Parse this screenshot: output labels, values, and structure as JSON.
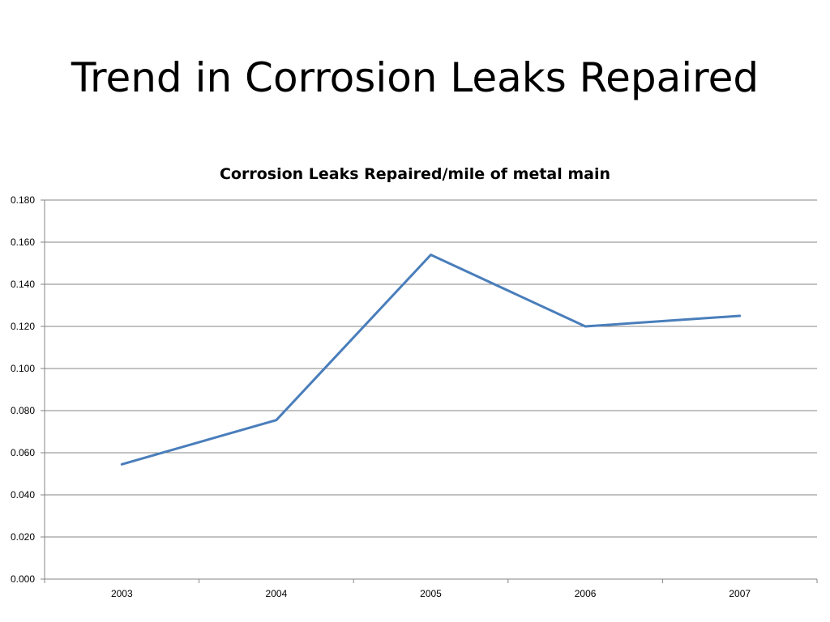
{
  "slide": {
    "title": "Trend in Corrosion Leaks Repaired"
  },
  "chart_data": {
    "type": "line",
    "title": "Corrosion Leaks Repaired/mile of metal main",
    "xlabel": "",
    "ylabel": "",
    "categories": [
      "2003",
      "2004",
      "2005",
      "2006",
      "2007"
    ],
    "series": [
      {
        "values": [
          0.0545,
          0.0755,
          0.154,
          0.12,
          0.125
        ],
        "color": "#4a7ebb"
      }
    ],
    "ylim": [
      0,
      0.18
    ],
    "y_ticks": [
      "0.000",
      "0.020",
      "0.040",
      "0.060",
      "0.080",
      "0.100",
      "0.120",
      "0.140",
      "0.160",
      "0.180"
    ],
    "grid": true,
    "legend": "none",
    "gridline_color": "#868686",
    "axis_color": "#868686"
  }
}
